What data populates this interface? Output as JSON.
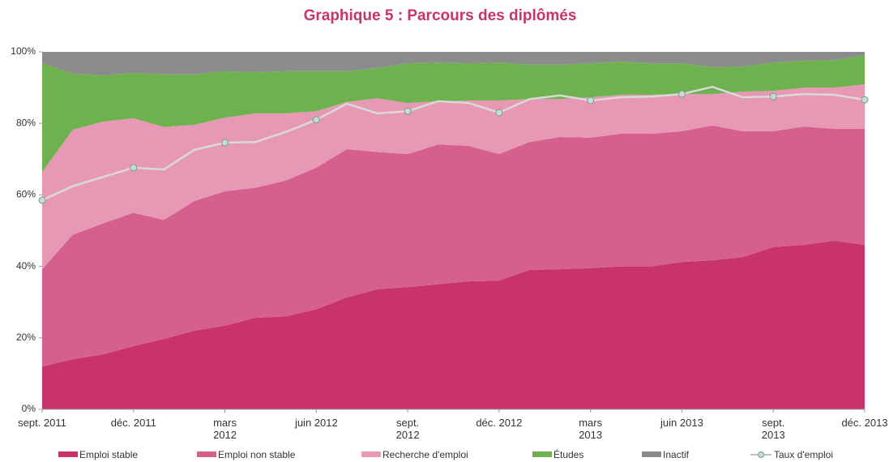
{
  "chart_data": {
    "type": "stacked_area_line",
    "title": "Graphique 5 : Parcours des diplômés",
    "categories": [
      "sept. 2011",
      null,
      null,
      "déc. 2011",
      null,
      null,
      "mars 2012",
      null,
      null,
      "juin 2012",
      null,
      null,
      "sept. 2012",
      null,
      null,
      "déc. 2012",
      null,
      null,
      "mars 2013",
      null,
      null,
      "juin 2013",
      null,
      null,
      "sept. 2013",
      null,
      null,
      "déc. 2013"
    ],
    "series": [
      {
        "name": "Emploi stable",
        "color": "#c8336a",
        "values": [
          12,
          14,
          15.4,
          17.7,
          19.7,
          22,
          23.4,
          25.6,
          26,
          28,
          31.3,
          33.6,
          34.2,
          35,
          35.8,
          36,
          39,
          39.2,
          39.5,
          40,
          40,
          41.2,
          41.7,
          42.6,
          45.4,
          46,
          47.2,
          46
        ]
      },
      {
        "name": "Emploi non stable",
        "color": "#d6608c",
        "values": [
          27.2,
          34.8,
          36.6,
          37.3,
          33.3,
          36.3,
          37.6,
          36.4,
          38,
          39.6,
          41.5,
          38.4,
          37.2,
          39.1,
          37.9,
          35.4,
          35.8,
          37,
          36.5,
          37.1,
          37.1,
          36.6,
          37.7,
          35.2,
          32.4,
          33.1,
          31.3,
          32.5
        ]
      },
      {
        "name": "Recherche d'emploi",
        "color": "#e698b4",
        "values": [
          27.2,
          29.4,
          28.5,
          26.4,
          26,
          21.3,
          20.6,
          20.8,
          18.8,
          15.8,
          13.2,
          15,
          14.3,
          12.1,
          12.7,
          15,
          12,
          10.6,
          11.3,
          10.9,
          10.9,
          10.4,
          8.8,
          11.1,
          11.3,
          10.9,
          11.5,
          12.4
        ]
      },
      {
        "name": "Études",
        "color": "#6db24e",
        "values": [
          30.4,
          15.7,
          12.9,
          12.7,
          14.7,
          14.1,
          13,
          11.5,
          11.8,
          11.2,
          8.6,
          8.5,
          11.1,
          10.8,
          10.4,
          10.6,
          9.6,
          9.6,
          9.5,
          9.3,
          8.8,
          8.6,
          7.5,
          7,
          7.9,
          7.5,
          7.7,
          8.1
        ]
      },
      {
        "name": "Inactif",
        "color": "#8c8c8c",
        "values": [
          3.2,
          6.1,
          6.6,
          5.9,
          6.3,
          6.3,
          5.4,
          5.7,
          5.4,
          5.4,
          5.4,
          4.5,
          3.2,
          3,
          3.2,
          3,
          3.6,
          3.6,
          3.2,
          2.7,
          3.2,
          3.2,
          4.3,
          4.1,
          3,
          2.5,
          2.3,
          1
        ]
      }
    ],
    "line": {
      "name": "Taux d'emploi",
      "color": "#d9d9d9",
      "marker_color": "#c5dcd5",
      "values": [
        58.5,
        62.4,
        65,
        67.6,
        67.1,
        72.6,
        74.6,
        74.8,
        77.6,
        81,
        85.5,
        82.8,
        83.4,
        86.2,
        85.7,
        83,
        86.8,
        87.8,
        86.4,
        87.3,
        87.5,
        88.2,
        90.2,
        87.3,
        87.5,
        88.2,
        88,
        86.6
      ]
    },
    "ylim": [
      0,
      100
    ],
    "yticks": [
      {
        "value": 0,
        "label": "0%"
      },
      {
        "value": 20,
        "label": "20%"
      },
      {
        "value": 40,
        "label": "40%"
      },
      {
        "value": 60,
        "label": "60%"
      },
      {
        "value": 80,
        "label": "80%"
      },
      {
        "value": 100,
        "label": "100%"
      }
    ],
    "grid": false,
    "legend": "bottom"
  }
}
